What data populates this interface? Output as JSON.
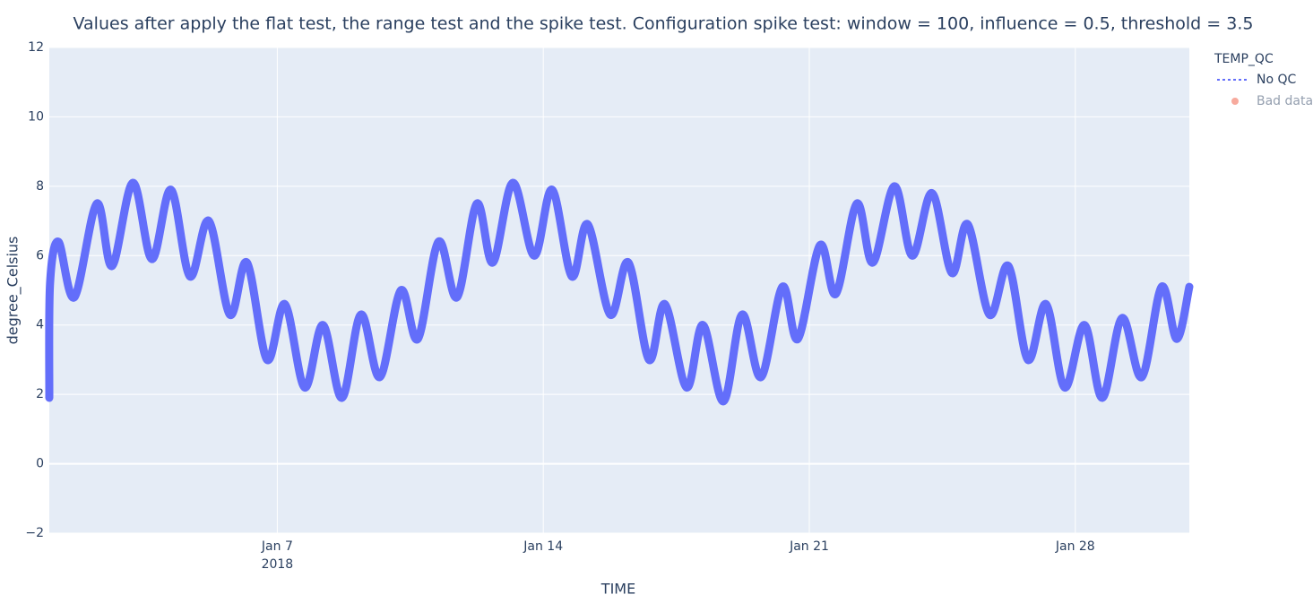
{
  "chart_data": {
    "type": "line",
    "title": "Values after apply the flat test, the range test and the spike test. Configuration spike test: window = 100, influence = 0.5, threshold = 3.5",
    "x_label": "TIME",
    "y_label": "degree_Celsius",
    "x_tick_year": "2018",
    "legend_title": "TEMP_QC",
    "legend_position": "top-right",
    "grid": true,
    "xlim": [
      0,
      30
    ],
    "ylim": [
      -2,
      12
    ],
    "xticks": [
      {
        "value": 6,
        "label": "Jan 7"
      },
      {
        "value": 13,
        "label": "Jan 14"
      },
      {
        "value": 20,
        "label": "Jan 21"
      },
      {
        "value": 27,
        "label": "Jan 28"
      }
    ],
    "yticks": [
      {
        "value": -2,
        "label": "−2"
      },
      0,
      2,
      4,
      6,
      8,
      10,
      12
    ],
    "series": [
      {
        "name": "No QC",
        "color": "#636efa",
        "visible": true,
        "x": [
          0,
          0.02,
          0.24,
          0.66,
          1.25,
          1.65,
          2.2,
          2.7,
          3.2,
          3.7,
          4.2,
          4.75,
          5.2,
          5.73,
          6.2,
          6.72,
          7.2,
          7.7,
          8.2,
          8.7,
          9.25,
          9.7,
          10.24,
          10.73,
          11.25,
          11.67,
          12.2,
          12.76,
          13.23,
          13.75,
          14.17,
          14.76,
          15.24,
          15.78,
          16.2,
          16.77,
          17.2,
          17.74,
          18.23,
          18.73,
          19.29,
          19.7,
          20.28,
          20.7,
          21.25,
          21.67,
          22.24,
          22.71,
          23.23,
          23.75,
          24.17,
          24.74,
          25.24,
          25.75,
          26.23,
          26.72,
          27.24,
          27.71,
          28.23,
          28.75,
          29.27,
          29.67,
          30
        ],
        "values": [
          1.9,
          5.2,
          6.4,
          4.8,
          7.5,
          5.7,
          8.1,
          5.9,
          7.9,
          5.4,
          7.0,
          4.3,
          5.8,
          3.0,
          4.6,
          2.2,
          4.0,
          1.9,
          4.3,
          2.5,
          5.0,
          3.6,
          6.4,
          4.8,
          7.5,
          5.8,
          8.1,
          6.0,
          7.9,
          5.4,
          6.9,
          4.3,
          5.8,
          3.0,
          4.6,
          2.2,
          4.0,
          1.8,
          4.3,
          2.5,
          5.1,
          3.6,
          6.3,
          4.9,
          7.5,
          5.8,
          8.0,
          6.0,
          7.8,
          5.5,
          6.9,
          4.3,
          5.7,
          3.0,
          4.6,
          2.2,
          4.0,
          1.9,
          4.2,
          2.5,
          5.1,
          3.6,
          5.1
        ]
      },
      {
        "name": "Bad data",
        "color": "#ef553b",
        "visible": "legendonly",
        "x": [],
        "values": []
      }
    ]
  }
}
